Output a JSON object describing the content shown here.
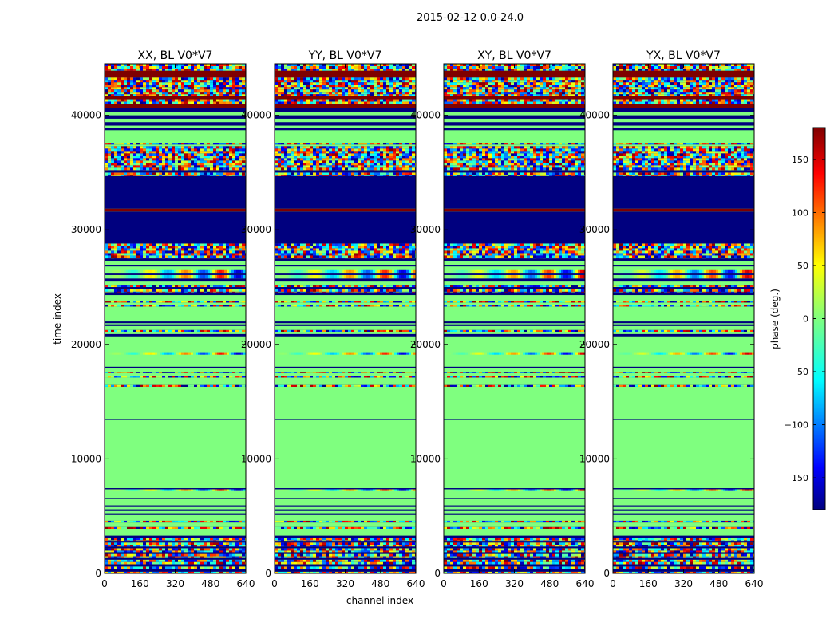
{
  "figure": {
    "suptitle": "2015-02-12 0.0-24.0",
    "ylabel": "time index",
    "xlabel": "channel index",
    "cbar_label": "phase (deg.)",
    "cbar_ticks": [
      150,
      100,
      50,
      0,
      -50,
      -100,
      -150
    ],
    "cbar_tick_labels": [
      "150",
      "100",
      "50",
      "0",
      "−50",
      "−100",
      "−150"
    ],
    "cbar_range": [
      -180,
      180
    ],
    "colormap": "jet",
    "colors": {
      "low": "#00007f",
      "zero": "#7fff7f",
      "high": "#7f0000",
      "frame": "#000000"
    }
  },
  "chart_data": [
    {
      "type": "heatmap",
      "title": "XX, BL V0*V7",
      "x_ticks": [
        0,
        160,
        320,
        480,
        640
      ],
      "y_ticks": [
        0,
        10000,
        20000,
        30000,
        40000
      ],
      "xlim": [
        0,
        640
      ],
      "ylim": [
        0,
        44500
      ],
      "zlim": [
        -180,
        180
      ],
      "summary": "phase vs channel and time"
    },
    {
      "type": "heatmap",
      "title": "YY, BL V0*V7",
      "x_ticks": [
        0,
        160,
        320,
        480,
        640
      ],
      "y_ticks": [
        0,
        10000,
        20000,
        30000,
        40000
      ],
      "xlim": [
        0,
        640
      ],
      "ylim": [
        0,
        44500
      ],
      "zlim": [
        -180,
        180
      ],
      "summary": "phase vs channel and time"
    },
    {
      "type": "heatmap",
      "title": "XY, BL V0*V7",
      "x_ticks": [
        0,
        160,
        320,
        480,
        640
      ],
      "y_ticks": [
        0,
        10000,
        20000,
        30000,
        40000
      ],
      "xlim": [
        0,
        640
      ],
      "ylim": [
        0,
        44500
      ],
      "zlim": [
        -180,
        180
      ],
      "summary": "phase vs channel and time"
    },
    {
      "type": "heatmap",
      "title": "YX, BL V0*V7",
      "x_ticks": [
        0,
        160,
        320,
        480,
        640
      ],
      "y_ticks": [
        0,
        10000,
        20000,
        30000,
        40000
      ],
      "xlim": [
        0,
        640
      ],
      "ylim": [
        0,
        44500
      ],
      "zlim": [
        -180,
        180
      ],
      "summary": "phase vs channel and time"
    }
  ],
  "bands": [
    {
      "y0": 0,
      "y1": 150,
      "kind": "noise"
    },
    {
      "y0": 150,
      "y1": 350,
      "kind": "low"
    },
    {
      "y0": 350,
      "y1": 600,
      "kind": "noise"
    },
    {
      "y0": 600,
      "y1": 800,
      "kind": "low"
    },
    {
      "y0": 800,
      "y1": 1200,
      "kind": "noise"
    },
    {
      "y0": 1200,
      "y1": 1350,
      "kind": "low"
    },
    {
      "y0": 1350,
      "y1": 1700,
      "kind": "noise"
    },
    {
      "y0": 1700,
      "y1": 1850,
      "kind": "low"
    },
    {
      "y0": 1850,
      "y1": 2200,
      "kind": "noise"
    },
    {
      "y0": 2200,
      "y1": 2350,
      "kind": "low"
    },
    {
      "y0": 2350,
      "y1": 2700,
      "kind": "noise"
    },
    {
      "y0": 2700,
      "y1": 2850,
      "kind": "low"
    },
    {
      "y0": 2850,
      "y1": 3100,
      "kind": "noise"
    },
    {
      "y0": 3100,
      "y1": 3300,
      "kind": "low"
    },
    {
      "y0": 3300,
      "y1": 3900,
      "kind": "zero"
    },
    {
      "y0": 3900,
      "y1": 4050,
      "kind": "noise"
    },
    {
      "y0": 4050,
      "y1": 4450,
      "kind": "zero"
    },
    {
      "y0": 4450,
      "y1": 4600,
      "kind": "noise"
    },
    {
      "y0": 4600,
      "y1": 5100,
      "kind": "zero"
    },
    {
      "y0": 5100,
      "y1": 5250,
      "kind": "low"
    },
    {
      "y0": 5250,
      "y1": 5450,
      "kind": "zero"
    },
    {
      "y0": 5450,
      "y1": 5600,
      "kind": "low"
    },
    {
      "y0": 5600,
      "y1": 5800,
      "kind": "zero"
    },
    {
      "y0": 5800,
      "y1": 5950,
      "kind": "low"
    },
    {
      "y0": 5950,
      "y1": 6500,
      "kind": "zero"
    },
    {
      "y0": 6500,
      "y1": 6600,
      "kind": "low"
    },
    {
      "y0": 6600,
      "y1": 7200,
      "kind": "zero"
    },
    {
      "y0": 7200,
      "y1": 7350,
      "kind": "wave"
    },
    {
      "y0": 7350,
      "y1": 7450,
      "kind": "low"
    },
    {
      "y0": 7450,
      "y1": 13400,
      "kind": "zero"
    },
    {
      "y0": 13400,
      "y1": 13500,
      "kind": "low"
    },
    {
      "y0": 13500,
      "y1": 16300,
      "kind": "zero"
    },
    {
      "y0": 16300,
      "y1": 16450,
      "kind": "noise"
    },
    {
      "y0": 16450,
      "y1": 17100,
      "kind": "zero"
    },
    {
      "y0": 17100,
      "y1": 17250,
      "kind": "noise"
    },
    {
      "y0": 17250,
      "y1": 17500,
      "kind": "zero"
    },
    {
      "y0": 17500,
      "y1": 17600,
      "kind": "noise"
    },
    {
      "y0": 17600,
      "y1": 17900,
      "kind": "zero"
    },
    {
      "y0": 17900,
      "y1": 18050,
      "kind": "low"
    },
    {
      "y0": 18050,
      "y1": 19100,
      "kind": "zero"
    },
    {
      "y0": 19100,
      "y1": 19250,
      "kind": "wave"
    },
    {
      "y0": 19250,
      "y1": 20700,
      "kind": "zero"
    },
    {
      "y0": 20700,
      "y1": 20900,
      "kind": "low"
    },
    {
      "y0": 20900,
      "y1": 21100,
      "kind": "zero"
    },
    {
      "y0": 21100,
      "y1": 21250,
      "kind": "noise"
    },
    {
      "y0": 21250,
      "y1": 21600,
      "kind": "zero"
    },
    {
      "y0": 21600,
      "y1": 21750,
      "kind": "low"
    },
    {
      "y0": 21750,
      "y1": 21850,
      "kind": "zero"
    },
    {
      "y0": 21850,
      "y1": 22000,
      "kind": "low"
    },
    {
      "y0": 22000,
      "y1": 23300,
      "kind": "zero"
    },
    {
      "y0": 23300,
      "y1": 23450,
      "kind": "noise"
    },
    {
      "y0": 23450,
      "y1": 23650,
      "kind": "zero"
    },
    {
      "y0": 23650,
      "y1": 23800,
      "kind": "noise"
    },
    {
      "y0": 23800,
      "y1": 24300,
      "kind": "zero"
    },
    {
      "y0": 24300,
      "y1": 24550,
      "kind": "low"
    },
    {
      "y0": 24550,
      "y1": 24800,
      "kind": "noise"
    },
    {
      "y0": 24800,
      "y1": 25000,
      "kind": "low"
    },
    {
      "y0": 25000,
      "y1": 25200,
      "kind": "noise"
    },
    {
      "y0": 25200,
      "y1": 25550,
      "kind": "zero"
    },
    {
      "y0": 25550,
      "y1": 25750,
      "kind": "low"
    },
    {
      "y0": 25750,
      "y1": 26050,
      "kind": "wave"
    },
    {
      "y0": 26050,
      "y1": 26250,
      "kind": "low"
    },
    {
      "y0": 26250,
      "y1": 26550,
      "kind": "wave"
    },
    {
      "y0": 26550,
      "y1": 26800,
      "kind": "zero"
    },
    {
      "y0": 26800,
      "y1": 26950,
      "kind": "low"
    },
    {
      "y0": 26950,
      "y1": 27300,
      "kind": "zero"
    },
    {
      "y0": 27300,
      "y1": 27500,
      "kind": "low"
    },
    {
      "y0": 27500,
      "y1": 28800,
      "kind": "noise"
    },
    {
      "y0": 28800,
      "y1": 31600,
      "kind": "low"
    },
    {
      "y0": 31600,
      "y1": 31850,
      "kind": "high"
    },
    {
      "y0": 31850,
      "y1": 34700,
      "kind": "low"
    },
    {
      "y0": 34700,
      "y1": 35000,
      "kind": "noise"
    },
    {
      "y0": 35000,
      "y1": 35200,
      "kind": "low"
    },
    {
      "y0": 35200,
      "y1": 37300,
      "kind": "noise"
    },
    {
      "y0": 37300,
      "y1": 37450,
      "kind": "zero"
    },
    {
      "y0": 37450,
      "y1": 37600,
      "kind": "noise"
    },
    {
      "y0": 37600,
      "y1": 38700,
      "kind": "zero"
    },
    {
      "y0": 38700,
      "y1": 38900,
      "kind": "low"
    },
    {
      "y0": 38900,
      "y1": 39100,
      "kind": "zero"
    },
    {
      "y0": 39100,
      "y1": 39400,
      "kind": "low"
    },
    {
      "y0": 39400,
      "y1": 39700,
      "kind": "zero"
    },
    {
      "y0": 39700,
      "y1": 40000,
      "kind": "low"
    },
    {
      "y0": 40000,
      "y1": 40300,
      "kind": "zero"
    },
    {
      "y0": 40300,
      "y1": 40600,
      "kind": "low"
    },
    {
      "y0": 40600,
      "y1": 41000,
      "kind": "high"
    },
    {
      "y0": 41000,
      "y1": 41400,
      "kind": "noise"
    },
    {
      "y0": 41400,
      "y1": 41700,
      "kind": "high"
    },
    {
      "y0": 41700,
      "y1": 43300,
      "kind": "noise"
    },
    {
      "y0": 43300,
      "y1": 43900,
      "kind": "high"
    },
    {
      "y0": 43900,
      "y1": 44500,
      "kind": "noise"
    }
  ]
}
